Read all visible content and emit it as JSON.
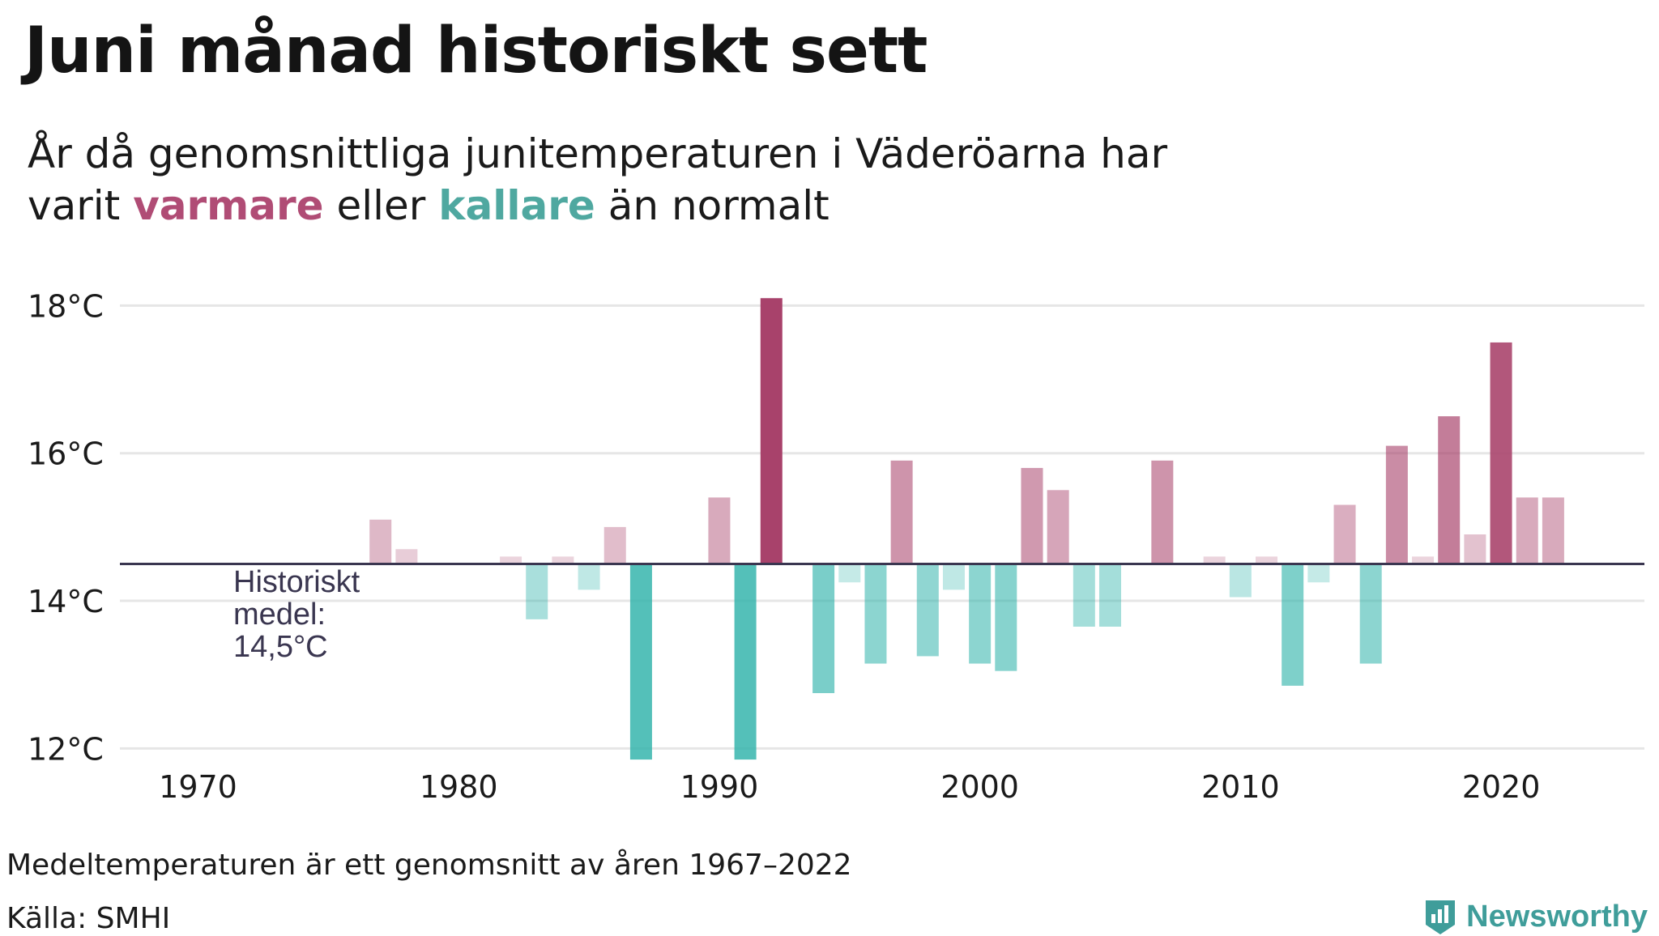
{
  "header": {
    "title": "Juni månad historiskt sett",
    "subtitle_line1": "År då genomsnittliga junitemperaturen i Väderöarna har",
    "subtitle_line2_prefix": "varit ",
    "subtitle_warm": "varmare",
    "subtitle_middle": " eller ",
    "subtitle_cold": "kallare",
    "subtitle_suffix": " än normalt"
  },
  "footer": {
    "note": "Medeltemperaturen är ett genomsnitt av åren 1967–2022",
    "source": "Källa: SMHI",
    "brand": "Newsworthy",
    "brand_icon": "newsworthy-logo-icon"
  },
  "colors": {
    "warm": "#a8426b",
    "cold": "#2fb3aa",
    "baseline": "#3a3650",
    "grid": "#e6e6e6"
  },
  "chart_data": {
    "type": "bar",
    "baseline": 14.5,
    "baseline_label": [
      "Historiskt",
      "medel:",
      "14,5°C"
    ],
    "ylim": [
      11.5,
      18.3
    ],
    "xlim": [
      1967,
      2025.5
    ],
    "y_ticks": [
      12,
      14,
      16,
      18
    ],
    "y_tick_labels": [
      "12°C",
      "14°C",
      "16°C",
      "18°C"
    ],
    "x_ticks": [
      1970,
      1980,
      1990,
      2000,
      2010,
      2020
    ],
    "x_tick_labels": [
      "1970",
      "1980",
      "1990",
      "2000",
      "2010",
      "2020"
    ],
    "grid": true,
    "x": [
      1977,
      1978,
      1982,
      1983,
      1984,
      1985,
      1986,
      1987,
      1990,
      1991,
      1992,
      1994,
      1995,
      1996,
      1997,
      1998,
      1999,
      2000,
      2001,
      2002,
      2003,
      2004,
      2005,
      2007,
      2009,
      2010,
      2011,
      2012,
      2013,
      2014,
      2015,
      2016,
      2017,
      2018,
      2019,
      2020,
      2021,
      2022
    ],
    "values": [
      15.1,
      14.7,
      14.6,
      13.75,
      14.6,
      14.15,
      15.0,
      11.85,
      15.4,
      11.85,
      18.1,
      12.75,
      14.25,
      13.15,
      15.9,
      13.25,
      14.15,
      13.15,
      13.05,
      15.8,
      15.5,
      13.65,
      13.65,
      15.9,
      14.6,
      14.05,
      14.6,
      12.85,
      14.25,
      15.3,
      13.15,
      16.1,
      14.6,
      16.5,
      14.9,
      17.5,
      15.4,
      15.4
    ]
  }
}
